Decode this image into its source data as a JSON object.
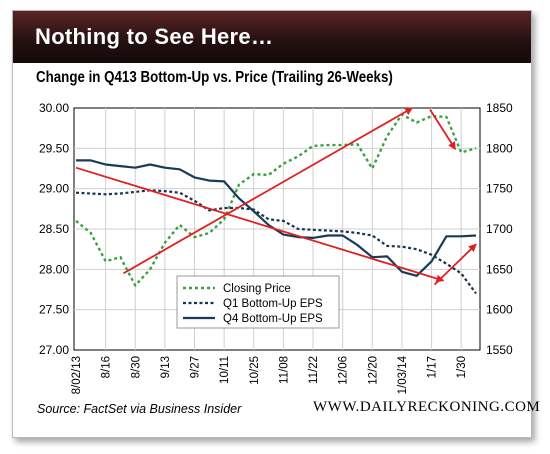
{
  "header": {
    "title": "Nothing to See Here…"
  },
  "footer": {
    "source": "Source: FactSet via Business Insider",
    "site": "WWW.DAILYRECKONING.COM"
  },
  "colors": {
    "price": "#3aa042",
    "q1": "#1a3450",
    "q4": "#1a3a5a",
    "arrow": "#e02020",
    "grid": "#cfcfcf"
  },
  "chart_data": {
    "type": "line",
    "title": "Change in Q413 Bottom-Up vs. Price (Trailing 26-Weeks)",
    "xlabel": "",
    "ylabel_left": "",
    "ylabel_right": "",
    "ylim_left": [
      27.0,
      30.0
    ],
    "ylim_right": [
      1550,
      1850
    ],
    "yticks_left": [
      "27.00",
      "27.50",
      "28.00",
      "28.50",
      "29.00",
      "29.50",
      "30.00"
    ],
    "yticks_right": [
      "1550",
      "1600",
      "1650",
      "1700",
      "1750",
      "1800",
      "1850"
    ],
    "x_tick_labels": [
      "8/02/13",
      "8/16",
      "8/30",
      "9/13",
      "9/27",
      "10/11",
      "10/25",
      "11/08",
      "11/22",
      "12/06",
      "12/20",
      "1/03/14",
      "1/17",
      "1/30"
    ],
    "grid": true,
    "legend_position": "bottom-center",
    "series": [
      {
        "name": "Closing Price",
        "axis": "right",
        "style": "dotted",
        "values": [
          1710,
          1695,
          1660,
          1665,
          1630,
          1650,
          1683,
          1705,
          1690,
          1695,
          1712,
          1755,
          1768,
          1767,
          1781,
          1790,
          1803,
          1804,
          1804,
          1805,
          1775,
          1815,
          1842,
          1832,
          1840,
          1839,
          1795,
          1800
        ]
      },
      {
        "name": "Q1 Bottom-Up EPS",
        "axis": "left",
        "style": "dashed",
        "values": [
          28.95,
          28.94,
          28.93,
          28.94,
          28.96,
          28.98,
          28.97,
          28.95,
          28.85,
          28.73,
          28.76,
          28.76,
          28.74,
          28.62,
          28.6,
          28.5,
          28.49,
          28.48,
          28.47,
          28.45,
          28.42,
          28.29,
          28.28,
          28.25,
          28.18,
          28.07,
          27.95,
          27.7
        ]
      },
      {
        "name": "Q4 Bottom-Up EPS",
        "axis": "left",
        "style": "solid",
        "values": [
          29.35,
          29.35,
          29.3,
          29.28,
          29.26,
          29.3,
          29.26,
          29.24,
          29.14,
          29.1,
          29.09,
          28.88,
          28.72,
          28.55,
          28.43,
          28.4,
          28.39,
          28.42,
          28.42,
          28.3,
          28.15,
          28.16,
          27.97,
          27.92,
          28.1,
          28.41,
          28.41,
          28.42
        ]
      }
    ],
    "annotations": [
      {
        "type": "arrow",
        "from": [
          0,
          29.26
        ],
        "to": [
          24.8,
          27.86
        ]
      },
      {
        "type": "arrow",
        "from": [
          3.2,
          27.95
        ],
        "to": [
          22.7,
          30.0
        ]
      },
      {
        "type": "arrow",
        "from": [
          23.9,
          29.98
        ],
        "to": [
          25.6,
          29.49
        ]
      },
      {
        "type": "arrow",
        "from": [
          24.2,
          27.81
        ],
        "to": [
          27.0,
          28.31
        ]
      }
    ]
  }
}
